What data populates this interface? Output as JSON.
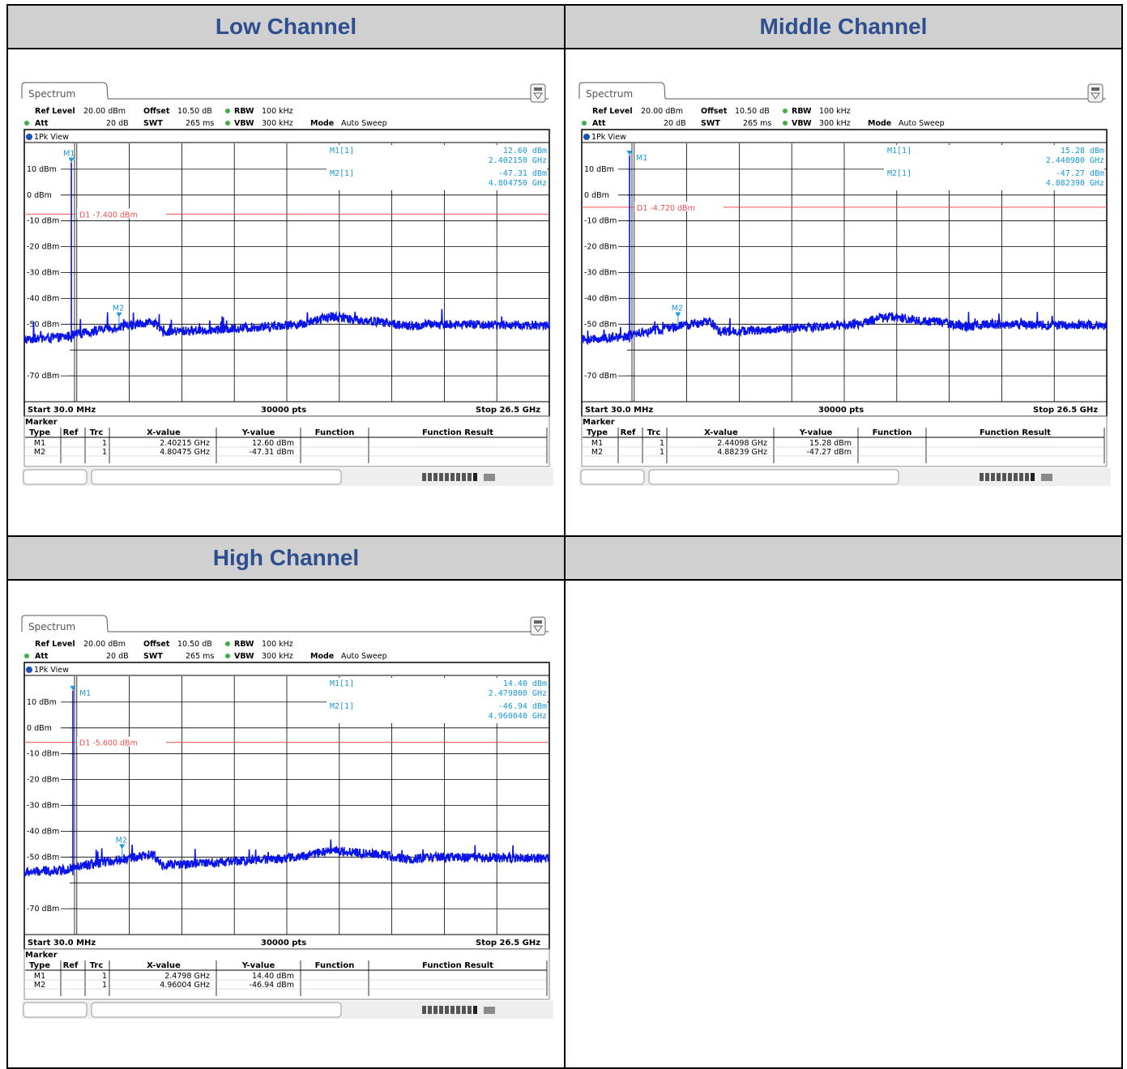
{
  "headers": {
    "low": "Low Channel",
    "middle": "Middle Channel",
    "high": "High Channel",
    "empty": ""
  },
  "colors": {
    "header_bg": "#d0d0d0",
    "header_text": "#2e4f8f",
    "trace": "#0a14e6",
    "marker": "#1a9ad6",
    "display_line": "#f05050"
  },
  "common": {
    "tab_label": "Spectrum",
    "ref_level_label": "Ref Level",
    "ref_level_value": "20.00 dBm",
    "offset_label": "Offset",
    "offset_value": "10.50 dB",
    "rbw_label": "RBW",
    "rbw_value": "100 kHz",
    "att_label": "Att",
    "att_value": "20 dB",
    "swt_label": "SWT",
    "swt_value": "265 ms",
    "vbw_label": "VBW",
    "vbw_value": "300 kHz",
    "mode_label": "Mode",
    "mode_value": "Auto Sweep",
    "view_label": "1Pk View",
    "start_label": "Start 30.0 MHz",
    "points_label": "30000 pts",
    "stop_label": "Stop 26.5 GHz",
    "marker_table_title": "Marker",
    "col_type": "Type",
    "col_ref": "Ref",
    "col_trc": "Trc",
    "col_x": "X-value",
    "col_y": "Y-value",
    "col_function": "Function",
    "col_function_result": "Function Result"
  },
  "chart_data": [
    {
      "type": "line",
      "title": "Low Channel",
      "xlim": [
        0.03,
        26.5
      ],
      "ylim": [
        -80,
        20
      ],
      "y_tick_labels": [
        "10 dBm",
        "0 dBm",
        "-10 dBm",
        "-20 dBm",
        "-30 dBm",
        "-40 dBm",
        "-50 dBm",
        "-70 dBm"
      ],
      "display_line": {
        "label": "D1",
        "value": -7.4,
        "text": "-7.400 dBm"
      },
      "marker_readout": {
        "m1_label": "M1[1]",
        "m1_level": "12.60 dBm",
        "m1_freq": "2.402150 GHz",
        "m2_label": "M2[1]",
        "m2_level": "-47.31 dBm",
        "m2_freq": "4.804750 GHz"
      },
      "markers": [
        {
          "type": "M1",
          "ref": "",
          "trc": "1",
          "x": "2.40215 GHz",
          "y": "12.60 dBm",
          "x_ghz": 2.40215,
          "y_dbm": 12.6
        },
        {
          "type": "M2",
          "ref": "",
          "trc": "1",
          "x": "4.80475 GHz",
          "y": "-47.31 dBm",
          "x_ghz": 4.80475,
          "y_dbm": -47.31
        }
      ],
      "noise_floor_ghz": [
        0.03,
        2,
        4,
        6.5,
        7,
        10,
        12,
        14,
        15.5,
        17,
        18,
        19.5,
        20.5,
        26.5
      ],
      "noise_floor_dbm": [
        -56,
        -55,
        -52,
        -49,
        -53,
        -52,
        -51,
        -50,
        -47,
        -48.5,
        -49,
        -51,
        -50,
        -50.5
      ]
    },
    {
      "type": "line",
      "title": "Middle Channel",
      "xlim": [
        0.03,
        26.5
      ],
      "ylim": [
        -80,
        20
      ],
      "y_tick_labels": [
        "10 dBm",
        "0 dBm",
        "-10 dBm",
        "-20 dBm",
        "-30 dBm",
        "-40 dBm",
        "-50 dBm",
        "-70 dBm"
      ],
      "display_line": {
        "label": "D1",
        "value": -4.72,
        "text": "-4.720 dBm"
      },
      "marker_readout": {
        "m1_label": "M1[1]",
        "m1_level": "15.28 dBm",
        "m1_freq": "2.440980 GHz",
        "m2_label": "M2[1]",
        "m2_level": "-47.27 dBm",
        "m2_freq": "4.882390 GHz"
      },
      "markers": [
        {
          "type": "M1",
          "ref": "",
          "trc": "1",
          "x": "2.44098 GHz",
          "y": "15.28 dBm",
          "x_ghz": 2.44098,
          "y_dbm": 15.28
        },
        {
          "type": "M2",
          "ref": "",
          "trc": "1",
          "x": "4.88239 GHz",
          "y": "-47.27 dBm",
          "x_ghz": 4.88239,
          "y_dbm": -47.27
        }
      ],
      "noise_floor_ghz": [
        0.03,
        2,
        4,
        6.5,
        7,
        10,
        12,
        14,
        15.5,
        17,
        18,
        19.5,
        20.5,
        26.5
      ],
      "noise_floor_dbm": [
        -56,
        -55,
        -52,
        -49,
        -53,
        -52,
        -51,
        -50,
        -47,
        -48.5,
        -49,
        -51,
        -50,
        -50.5
      ]
    },
    {
      "type": "line",
      "title": "High Channel",
      "xlim": [
        0.03,
        26.5
      ],
      "ylim": [
        -80,
        20
      ],
      "y_tick_labels": [
        "10 dBm",
        "0 dBm",
        "-10 dBm",
        "-20 dBm",
        "-30 dBm",
        "-40 dBm",
        "-50 dBm",
        "-70 dBm"
      ],
      "display_line": {
        "label": "D1",
        "value": -5.6,
        "text": "-5.600 dBm"
      },
      "marker_readout": {
        "m1_label": "M1[1]",
        "m1_level": "14.40 dBm",
        "m1_freq": "2.479800 GHz",
        "m2_label": "M2[1]",
        "m2_level": "-46.94 dBm",
        "m2_freq": "4.960040 GHz"
      },
      "markers": [
        {
          "type": "M1",
          "ref": "",
          "trc": "1",
          "x": "2.4798 GHz",
          "y": "14.40 dBm",
          "x_ghz": 2.4798,
          "y_dbm": 14.4
        },
        {
          "type": "M2",
          "ref": "",
          "trc": "1",
          "x": "4.96004 GHz",
          "y": "-46.94 dBm",
          "x_ghz": 4.96004,
          "y_dbm": -46.94
        }
      ],
      "noise_floor_ghz": [
        0.03,
        2,
        4,
        6.5,
        7,
        10,
        12,
        14,
        15.5,
        17,
        18,
        19.5,
        20.5,
        26.5
      ],
      "noise_floor_dbm": [
        -56,
        -55,
        -52,
        -49,
        -53,
        -52,
        -51,
        -50,
        -47,
        -48.5,
        -49,
        -51,
        -50,
        -50.5
      ]
    }
  ]
}
